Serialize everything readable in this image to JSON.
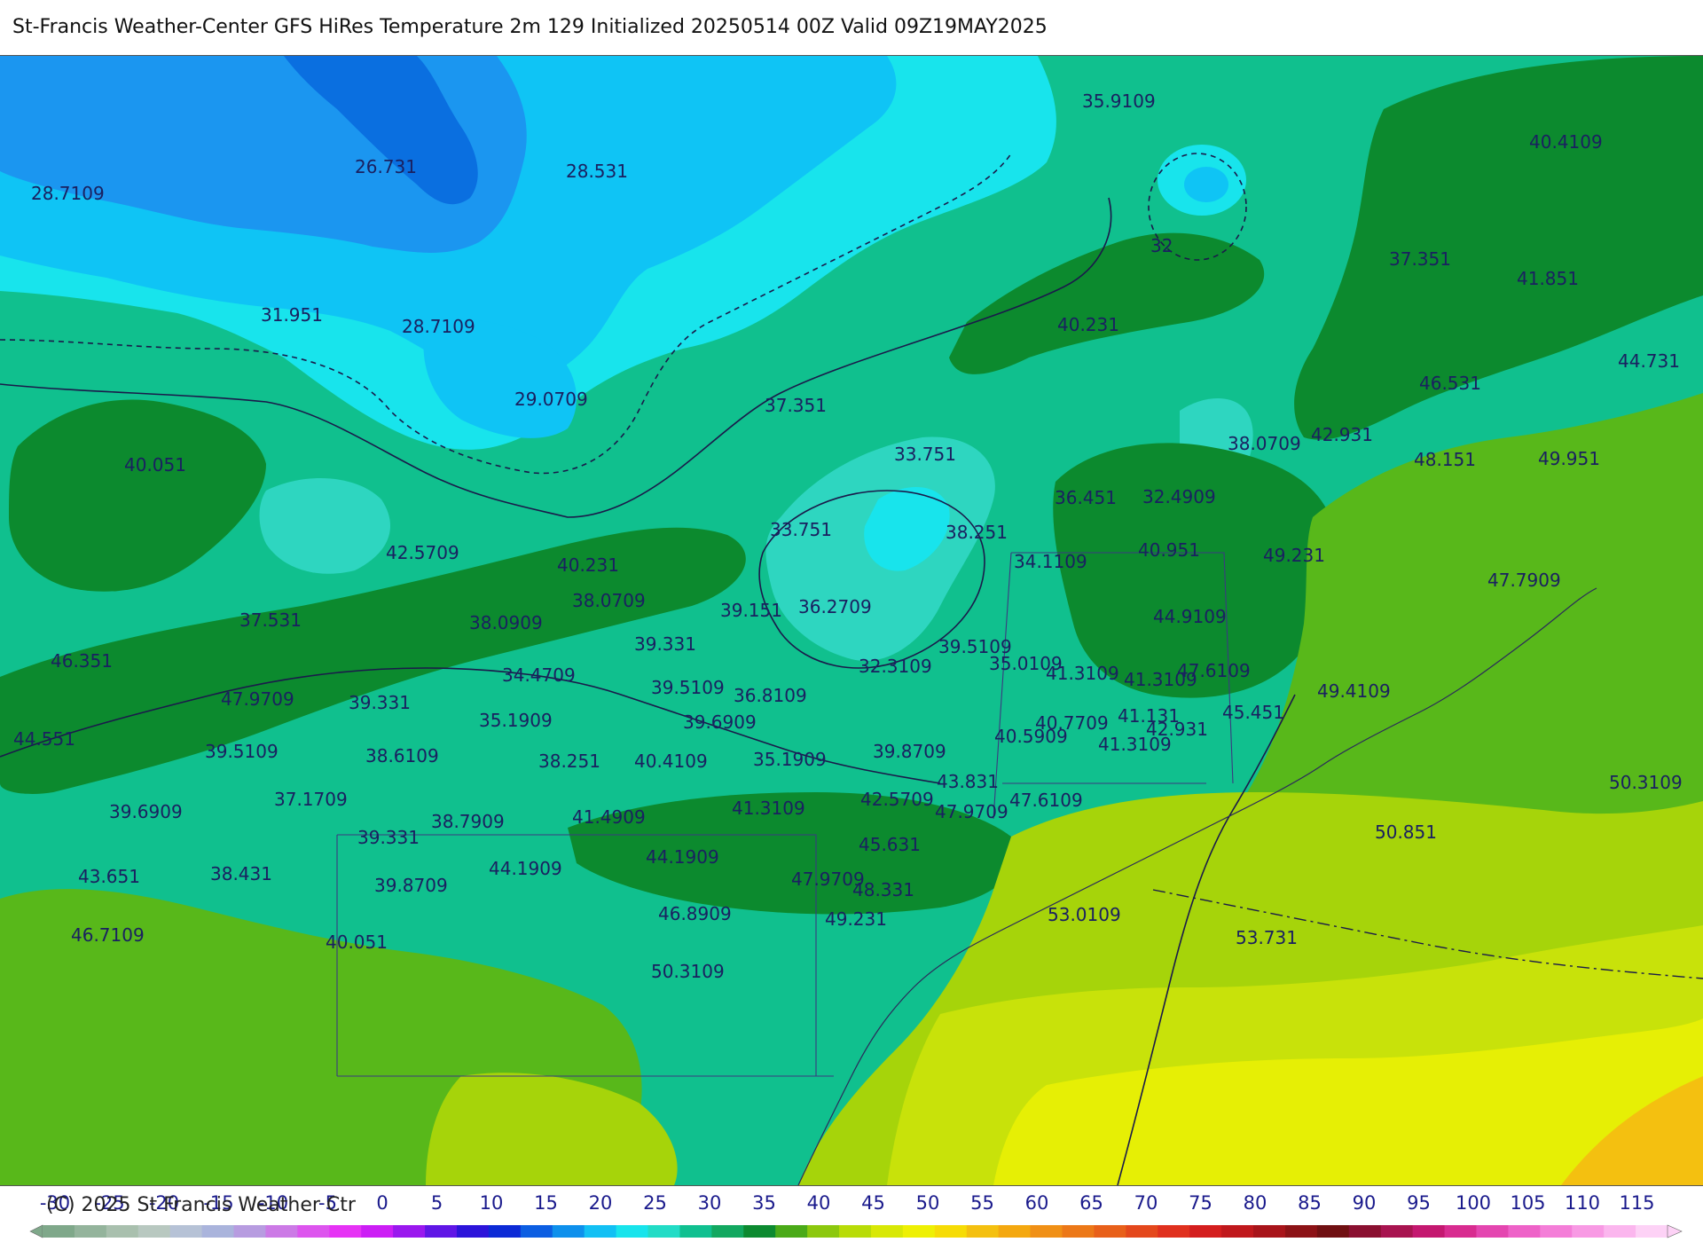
{
  "header": {
    "title": "St-Francis Weather-Center GFS HiRes Temperature 2m  129 Initialized 20250514 00Z Valid 09Z19MAY2025"
  },
  "footer": {
    "copyright": "(C) 2025 St Francis Weather Ctr"
  },
  "colors": {
    "deep_blue": "#0a6fe0",
    "blue": "#1b96f0",
    "sky": "#0fc4f5",
    "cyan": "#18e4ec",
    "teal_light": "#2ed6c0",
    "teal": "#10c08e",
    "green_mid": "#13a85a",
    "green_dark": "#0c8a2e",
    "green_olive": "#58b81a",
    "yellow_green": "#a6d40a",
    "lime": "#c8e20a",
    "yellow": "#e6ef05",
    "orange_yellow": "#f4c010",
    "orange": "#f7a80c",
    "isotherm_line": "#1a1a4a",
    "label": "#1a2060"
  },
  "map": {
    "temperature_labels": [
      {
        "text": "28.7109"
      },
      {
        "text": "26.731"
      },
      {
        "text": "28.531"
      },
      {
        "text": "35.9109"
      },
      {
        "text": "40.4109"
      },
      {
        "text": "32"
      },
      {
        "text": "37.351"
      },
      {
        "text": "41.851"
      },
      {
        "text": "31.951"
      },
      {
        "text": "28.7109"
      },
      {
        "text": "40.231"
      },
      {
        "text": "44.731"
      },
      {
        "text": "29.0709"
      },
      {
        "text": "37.351"
      },
      {
        "text": "46.531"
      },
      {
        "text": "38.0709"
      },
      {
        "text": "42.931"
      },
      {
        "text": "40.051"
      },
      {
        "text": "33.751"
      },
      {
        "text": "48.151"
      },
      {
        "text": "49.951"
      },
      {
        "text": "36.451"
      },
      {
        "text": "32.4909"
      },
      {
        "text": "33.751"
      },
      {
        "text": "38.251"
      },
      {
        "text": "42.5709"
      },
      {
        "text": "40.231"
      },
      {
        "text": "34.1109"
      },
      {
        "text": "40.951"
      },
      {
        "text": "49.231"
      },
      {
        "text": "47.7909"
      },
      {
        "text": "37.531"
      },
      {
        "text": "38.0709"
      },
      {
        "text": "39.151"
      },
      {
        "text": "36.2709"
      },
      {
        "text": "44.9109"
      },
      {
        "text": "38.0909"
      },
      {
        "text": "39.331"
      },
      {
        "text": "39.5109"
      },
      {
        "text": "46.351"
      },
      {
        "text": "34.4709"
      },
      {
        "text": "32.3109"
      },
      {
        "text": "35.0109"
      },
      {
        "text": "41.3109"
      },
      {
        "text": "41.3109"
      },
      {
        "text": "47.6109"
      },
      {
        "text": "39.5109"
      },
      {
        "text": "36.8109"
      },
      {
        "text": "49.4109"
      },
      {
        "text": "47.9709"
      },
      {
        "text": "39.331"
      },
      {
        "text": "45.451"
      },
      {
        "text": "35.1909"
      },
      {
        "text": "39.6909"
      },
      {
        "text": "41.131"
      },
      {
        "text": "42.931"
      },
      {
        "text": "40.7709"
      },
      {
        "text": "44.551"
      },
      {
        "text": "40.5909"
      },
      {
        "text": "41.3109"
      },
      {
        "text": "39.5109"
      },
      {
        "text": "38.6109"
      },
      {
        "text": "38.251"
      },
      {
        "text": "40.4109"
      },
      {
        "text": "35.1909"
      },
      {
        "text": "39.8709"
      },
      {
        "text": "43.831"
      },
      {
        "text": "50.3109"
      },
      {
        "text": "37.1709"
      },
      {
        "text": "47.6109"
      },
      {
        "text": "39.6909"
      },
      {
        "text": "41.3109"
      },
      {
        "text": "42.5709"
      },
      {
        "text": "47.9709"
      },
      {
        "text": "38.7909"
      },
      {
        "text": "41.4909"
      },
      {
        "text": "50.851"
      },
      {
        "text": "39.331"
      },
      {
        "text": "45.631"
      },
      {
        "text": "43.651"
      },
      {
        "text": "38.431"
      },
      {
        "text": "44.1909"
      },
      {
        "text": "44.1909"
      },
      {
        "text": "47.9709"
      },
      {
        "text": "39.8709"
      },
      {
        "text": "48.331"
      },
      {
        "text": "53.0109"
      },
      {
        "text": "46.8909"
      },
      {
        "text": "46.7109"
      },
      {
        "text": "40.051"
      },
      {
        "text": "49.231"
      },
      {
        "text": "53.731"
      },
      {
        "text": "50.3109"
      }
    ]
  },
  "colorbar": {
    "labels": [
      "-30",
      "-25",
      "-20",
      "-15",
      "-10",
      "-5",
      "0",
      "5",
      "10",
      "15",
      "20",
      "25",
      "30",
      "35",
      "40",
      "45",
      "50",
      "55",
      "60",
      "65",
      "70",
      "75",
      "80",
      "85",
      "90",
      "95",
      "100",
      "105",
      "110",
      "115"
    ],
    "colors": [
      "#7fa88a",
      "#94b49c",
      "#a9c0ae",
      "#b8c8c0",
      "#b6c2d6",
      "#aab4dc",
      "#b79ce0",
      "#cc7ae6",
      "#dd55ee",
      "#e633f5",
      "#cc1ef5",
      "#9a18ee",
      "#6016e6",
      "#2c14da",
      "#0c2ad6",
      "#0c5ee2",
      "#0e90ec",
      "#12c0f4",
      "#18e4ec",
      "#22dcc6",
      "#10c090",
      "#12a860",
      "#0c8a30",
      "#4aaa18",
      "#8cc80e",
      "#b8dc08",
      "#d8e806",
      "#eef004",
      "#f6dc06",
      "#f4c010",
      "#f4a810",
      "#f09016",
      "#ec7818",
      "#e8601a",
      "#e4481c",
      "#e0301e",
      "#d41e1e",
      "#c0181c",
      "#a8141a",
      "#8c1216",
      "#701012",
      "#8a1030",
      "#a81450",
      "#c41870",
      "#d82c90",
      "#e446b0",
      "#ee62c8",
      "#f47ed8",
      "#f89ae4",
      "#fbb6ee",
      "#fdd2f6"
    ]
  }
}
